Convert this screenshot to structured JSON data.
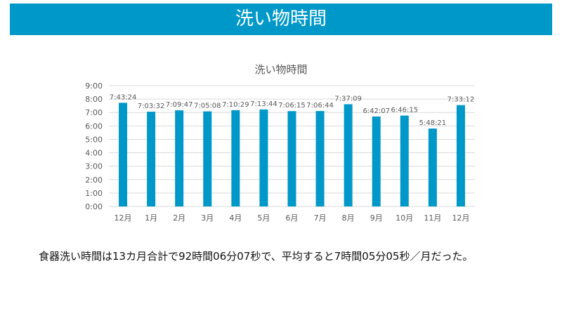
{
  "header": {
    "title": "洗い物時間"
  },
  "summary": "食器洗い時間は13カ月合計で92時間06分07秒で、平均すると7時間05分05秒／月だった。",
  "colors": {
    "accent": "#0098c9",
    "bar": "#0098c9",
    "grid": "#d9d9d9",
    "text": "#595959"
  },
  "chart_data": {
    "type": "bar",
    "title": "洗い物時間",
    "categories": [
      "12月",
      "1月",
      "2月",
      "3月",
      "4月",
      "5月",
      "6月",
      "7月",
      "8月",
      "9月",
      "10月",
      "11月",
      "12月"
    ],
    "values": [
      7.7233,
      7.0589,
      7.1631,
      7.0856,
      7.1747,
      7.2289,
      7.1042,
      7.1122,
      7.6192,
      6.7019,
      6.7708,
      5.8058,
      7.5533
    ],
    "data_labels": [
      "7:43:24",
      "7:03:32",
      "7:09:47",
      "7:05:08",
      "7:10:29",
      "7:13:44",
      "7:06:15",
      "7:06:44",
      "7:37:09",
      "6:42:07",
      "6:46:15",
      "5:48:21",
      "7:33:12"
    ],
    "y_ticks": [
      "0:00",
      "1:00",
      "2:00",
      "3:00",
      "4:00",
      "5:00",
      "6:00",
      "7:00",
      "8:00",
      "9:00"
    ],
    "ylim": [
      0,
      9
    ],
    "grid": true,
    "legend": "none"
  }
}
